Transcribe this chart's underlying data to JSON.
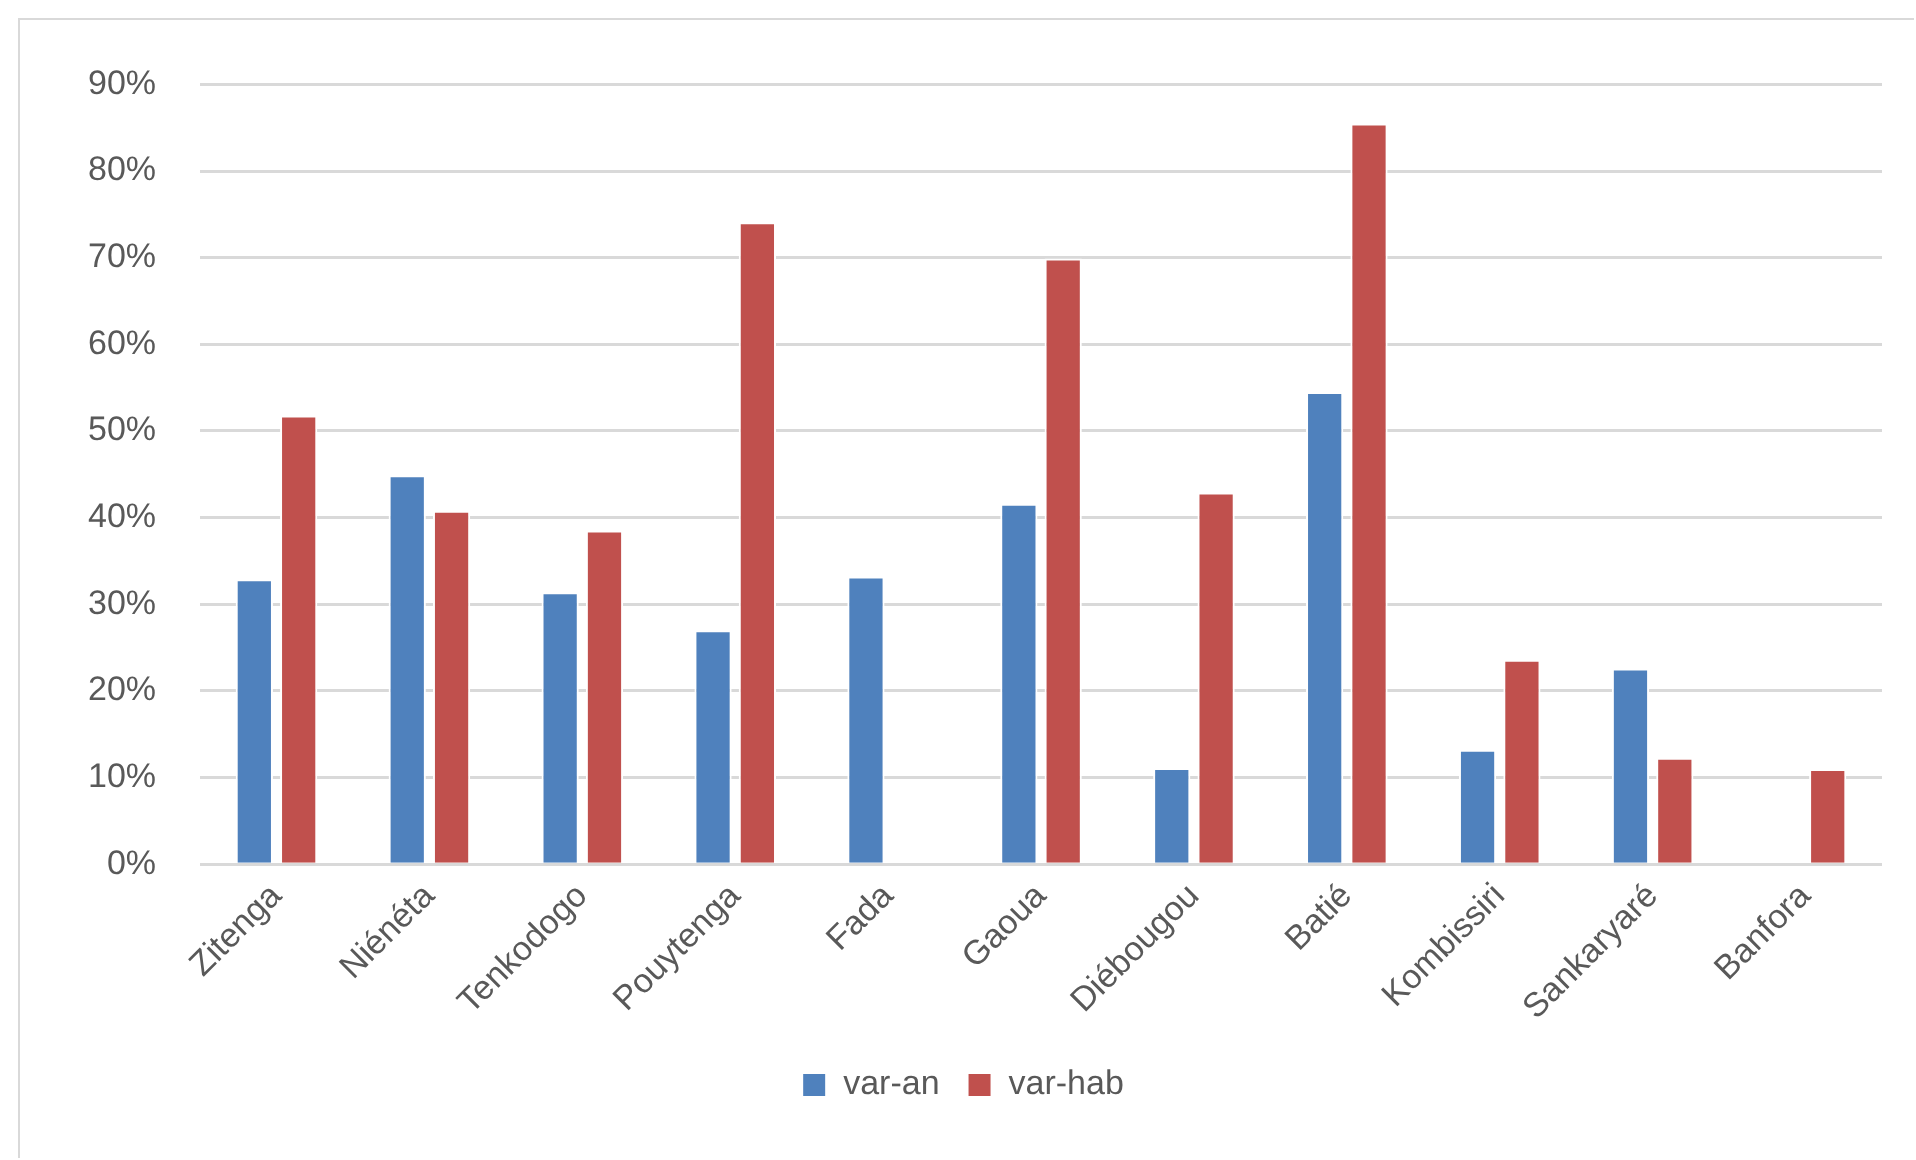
{
  "chart_data": {
    "type": "bar",
    "categories": [
      "Zitenga",
      "Niénéta",
      "Tenkodogo",
      "Pouytenga",
      "Fada",
      "Gaoua",
      "Diébougou",
      "Batié",
      "Kombissiri",
      "Sankaryaré",
      "Banfora"
    ],
    "series": [
      {
        "name": "var-an",
        "color": "#4f81bd",
        "values": [
          32.9,
          44.9,
          31.4,
          27.0,
          33.2,
          41.6,
          11.1,
          54.5,
          13.2,
          22.6,
          null
        ]
      },
      {
        "name": "var-hab",
        "color": "#c0504d",
        "values": [
          51.8,
          40.8,
          38.5,
          74.1,
          null,
          69.9,
          42.9,
          85.5,
          23.6,
          12.3,
          11.0
        ]
      }
    ],
    "ylim": [
      0,
      90
    ],
    "yticks": [
      {
        "value": 0,
        "label": "0%"
      },
      {
        "value": 10,
        "label": "10%"
      },
      {
        "value": 20,
        "label": "20%"
      },
      {
        "value": 30,
        "label": "30%"
      },
      {
        "value": 40,
        "label": "40%"
      },
      {
        "value": 50,
        "label": "50%"
      },
      {
        "value": 60,
        "label": "60%"
      },
      {
        "value": 70,
        "label": "70%"
      },
      {
        "value": 80,
        "label": "80%"
      },
      {
        "value": 90,
        "label": "90%"
      }
    ],
    "grid": "y",
    "legend": "bottom"
  }
}
